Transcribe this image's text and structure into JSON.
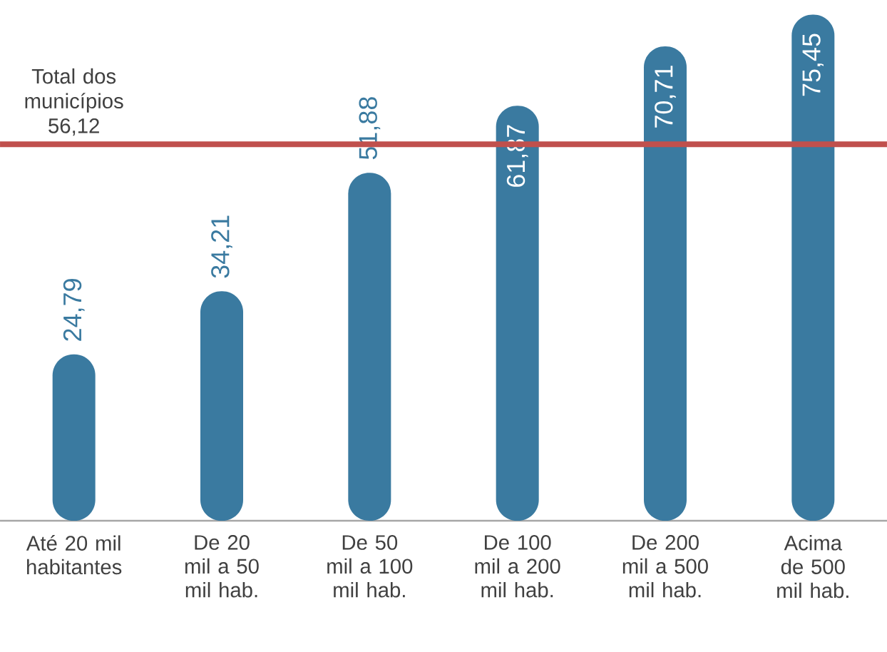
{
  "chart_data": {
    "type": "bar",
    "categories": [
      "Até 20 mil habitantes",
      "De 20 mil a 50 mil hab.",
      "De 50 mil a 100 mil hab.",
      "De 100 mil a 200 mil hab.",
      "De 200 mil a 500 mil hab.",
      "Acima de 500 mil hab."
    ],
    "values": [
      24.79,
      34.21,
      51.88,
      61.87,
      70.71,
      75.45
    ],
    "value_labels": [
      "24,79",
      "34,21",
      "51,88",
      "61,87",
      "70,71",
      "75,45"
    ],
    "color": "#3a7aa0",
    "ylim": [
      0,
      76
    ],
    "tick_labels": "x",
    "ref_lines": [
      {
        "axis": "y",
        "value": 56.12,
        "label": "Total dos municípios 56,12",
        "color": "#c0504d"
      }
    ]
  }
}
